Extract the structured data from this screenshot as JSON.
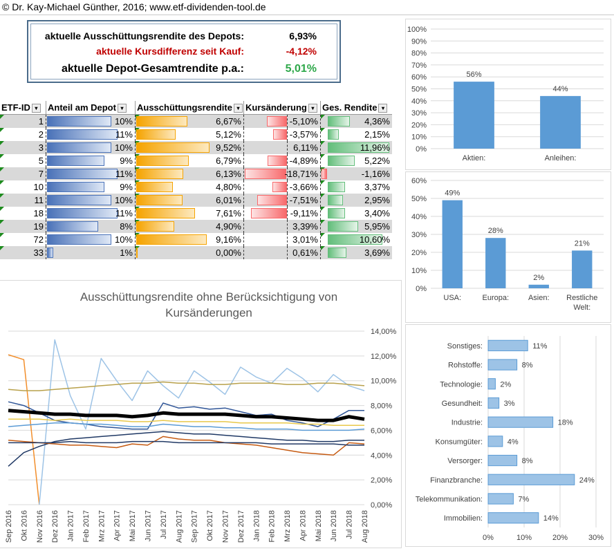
{
  "header": {
    "copyright": "© Dr. Kay-Michael Günther, 2016; www.etf-dividenden-tool.de"
  },
  "summary": {
    "rows": [
      {
        "label": "aktuelle Ausschüttungsrendite des Depots:",
        "value": "6,93%",
        "color": "#000000"
      },
      {
        "label": "aktuelle Kursdifferenz seit Kauf:",
        "value": "-4,12%",
        "color": "#c00000"
      },
      {
        "label": "aktuelle Depot-Gesamtrendite p.a.:",
        "value": "5,01%",
        "color": "#2ea84a"
      }
    ]
  },
  "table": {
    "headers": [
      "ETF-ID",
      "Anteil am Depot",
      "Ausschüttungsrendite",
      "Kursänderung",
      "Ges. Rendite"
    ],
    "rows": [
      {
        "id": "1",
        "anteil": "10%",
        "aus": "6,67%",
        "kurs": "-5,10%",
        "ges": "4,36%",
        "a": 10,
        "r": 6.67,
        "k": -5.1,
        "g": 4.36
      },
      {
        "id": "2",
        "anteil": "11%",
        "aus": "5,12%",
        "kurs": "-3,57%",
        "ges": "2,15%",
        "a": 11,
        "r": 5.12,
        "k": -3.57,
        "g": 2.15
      },
      {
        "id": "3",
        "anteil": "10%",
        "aus": "9,52%",
        "kurs": "6,11%",
        "ges": "11,96%",
        "a": 10,
        "r": 9.52,
        "k": 6.11,
        "g": 11.96
      },
      {
        "id": "5",
        "anteil": "9%",
        "aus": "6,79%",
        "kurs": "-4,89%",
        "ges": "5,22%",
        "a": 9,
        "r": 6.79,
        "k": -4.89,
        "g": 5.22
      },
      {
        "id": "7",
        "anteil": "11%",
        "aus": "6,13%",
        "kurs": "-18,71%",
        "ges": "-1,16%",
        "a": 11,
        "r": 6.13,
        "k": -18.71,
        "g": -1.16
      },
      {
        "id": "10",
        "anteil": "9%",
        "aus": "4,80%",
        "kurs": "-3,66%",
        "ges": "3,37%",
        "a": 9,
        "r": 4.8,
        "k": -3.66,
        "g": 3.37
      },
      {
        "id": "11",
        "anteil": "10%",
        "aus": "6,01%",
        "kurs": "-7,51%",
        "ges": "2,95%",
        "a": 10,
        "r": 6.01,
        "k": -7.51,
        "g": 2.95
      },
      {
        "id": "18",
        "anteil": "11%",
        "aus": "7,61%",
        "kurs": "-9,11%",
        "ges": "3,40%",
        "a": 11,
        "r": 7.61,
        "k": -9.11,
        "g": 3.4
      },
      {
        "id": "19",
        "anteil": "8%",
        "aus": "4,90%",
        "kurs": "3,39%",
        "ges": "5,95%",
        "a": 8,
        "r": 4.9,
        "k": 3.39,
        "g": 5.95
      },
      {
        "id": "72",
        "anteil": "10%",
        "aus": "9,16%",
        "kurs": "3,01%",
        "ges": "10,60%",
        "a": 10,
        "r": 9.16,
        "k": 3.01,
        "g": 10.6
      },
      {
        "id": "33",
        "anteil": "1%",
        "aus": "0,00%",
        "kurs": "0,61%",
        "ges": "3,69%",
        "a": 1,
        "r": 0.0,
        "k": 0.61,
        "g": 3.69
      }
    ]
  },
  "chart_data": [
    {
      "type": "bar",
      "categories": [
        "Aktien:",
        "Anleihen:"
      ],
      "values": [
        56,
        44
      ],
      "value_labels": [
        "56%",
        "44%"
      ],
      "ylim": [
        0,
        100
      ],
      "yticks": [
        "0%",
        "10%",
        "20%",
        "30%",
        "40%",
        "50%",
        "60%",
        "70%",
        "80%",
        "90%",
        "100%"
      ],
      "color": "#5b9bd5"
    },
    {
      "type": "bar",
      "categories": [
        "USA:",
        "Europa:",
        "Asien:",
        "Restliche Welt:"
      ],
      "values": [
        49,
        28,
        2,
        21
      ],
      "value_labels": [
        "49%",
        "28%",
        "2%",
        "21%"
      ],
      "ylim": [
        0,
        60
      ],
      "yticks": [
        "0%",
        "10%",
        "20%",
        "30%",
        "40%",
        "50%",
        "60%"
      ],
      "color": "#5b9bd5"
    },
    {
      "type": "bar",
      "orientation": "horizontal",
      "categories": [
        "Sonstiges:",
        "Rohstoffe:",
        "Technologie:",
        "Gesundheit:",
        "Industrie:",
        "Konsumgüter:",
        "Versorger:",
        "Finanzbranche:",
        "Telekommunikation:",
        "Immobilien:"
      ],
      "values": [
        11,
        8,
        2,
        3,
        18,
        4,
        8,
        24,
        7,
        14
      ],
      "value_labels": [
        "11%",
        "8%",
        "2%",
        "3%",
        "18%",
        "4%",
        "8%",
        "24%",
        "7%",
        "14%"
      ],
      "xlim": [
        0,
        30
      ],
      "xticks": [
        "0%",
        "10%",
        "20%",
        "30%"
      ],
      "color": "#9dc3e6"
    },
    {
      "type": "line",
      "title": "Ausschüttungsrendite ohne Berücksichtigung von Kursänderungen",
      "x": [
        "Sep 2016",
        "Okt 2016",
        "Nov 2016",
        "Dez 2016",
        "Jan 2017",
        "Feb 2017",
        "Mrz 2017",
        "Apr 2017",
        "Mai 2017",
        "Jun 2017",
        "Jul 2017",
        "Aug 2017",
        "Sep 2017",
        "Okt 2017",
        "Nov 2017",
        "Dez 2017",
        "Jan 2018",
        "Feb 2018",
        "Mrz 2018",
        "Apr 2018",
        "Mai 2018",
        "Jun 2018",
        "Jul 2018",
        "Aug 2018"
      ],
      "ylim": [
        0,
        14
      ],
      "yticks": [
        "0,00%",
        "2,00%",
        "4,00%",
        "6,00%",
        "8,00%",
        "10,00%",
        "12,00%",
        "14,00%"
      ],
      "series": [
        {
          "color": "#000000",
          "width": 5,
          "values": [
            7.6,
            7.5,
            7.4,
            7.3,
            7.3,
            7.2,
            7.2,
            7.2,
            7.1,
            7.2,
            7.4,
            7.3,
            7.3,
            7.3,
            7.3,
            7.2,
            7.1,
            7.1,
            7.0,
            6.9,
            6.8,
            6.8,
            7.1,
            6.9
          ]
        },
        {
          "color": "#f28e2b",
          "width": 1.5,
          "values": [
            12.1,
            11.7,
            0.0,
            null,
            null,
            null,
            null,
            null,
            null,
            null,
            null,
            null,
            null,
            null,
            null,
            null,
            null,
            null,
            null,
            null,
            null,
            null,
            null,
            null
          ]
        },
        {
          "color": "#9dc3e6",
          "width": 1.5,
          "values": [
            null,
            null,
            0.0,
            13.3,
            8.8,
            6.1,
            11.8,
            10.0,
            8.4,
            10.8,
            9.6,
            8.6,
            10.8,
            9.9,
            8.9,
            11.1,
            10.3,
            9.8,
            11.0,
            10.2,
            9.1,
            10.5,
            9.6,
            9.2
          ]
        },
        {
          "color": "#b8a04a",
          "width": 1.5,
          "values": [
            9.3,
            9.2,
            9.2,
            9.3,
            9.4,
            9.5,
            9.6,
            9.7,
            9.8,
            9.8,
            9.9,
            9.8,
            9.8,
            9.7,
            9.7,
            9.8,
            9.8,
            9.8,
            9.7,
            9.7,
            9.8,
            9.8,
            9.7,
            9.6
          ]
        },
        {
          "color": "#2f5597",
          "width": 1.5,
          "values": [
            8.3,
            8.0,
            7.4,
            6.8,
            6.6,
            6.5,
            6.3,
            6.2,
            6.1,
            6.1,
            8.2,
            7.8,
            7.9,
            7.7,
            7.8,
            7.5,
            7.2,
            7.3,
            6.8,
            6.6,
            6.3,
            6.9,
            7.6,
            7.6
          ]
        },
        {
          "color": "#e8c84a",
          "width": 1.5,
          "values": [
            6.9,
            6.9,
            6.9,
            6.8,
            6.9,
            6.8,
            6.8,
            6.8,
            6.7,
            6.7,
            6.8,
            6.7,
            6.7,
            6.7,
            6.7,
            6.6,
            6.6,
            6.6,
            6.6,
            6.5,
            6.5,
            6.4,
            6.4,
            6.4
          ]
        },
        {
          "color": "#5b9bd5",
          "width": 1.5,
          "values": [
            6.3,
            6.4,
            6.5,
            6.6,
            6.6,
            6.5,
            6.5,
            6.4,
            6.3,
            6.3,
            6.5,
            6.4,
            6.3,
            6.3,
            6.2,
            6.2,
            6.1,
            6.1,
            6.1,
            6.0,
            6.0,
            6.0,
            6.0,
            6.1
          ]
        },
        {
          "color": "#1f3864",
          "width": 1.5,
          "values": [
            3.1,
            4.2,
            4.7,
            5.1,
            5.3,
            5.4,
            5.5,
            5.6,
            5.7,
            5.8,
            5.9,
            5.8,
            5.7,
            5.7,
            5.6,
            5.5,
            5.4,
            5.3,
            5.2,
            5.2,
            5.1,
            5.1,
            5.2,
            5.2
          ]
        },
        {
          "color": "#c55a11",
          "width": 1.5,
          "values": [
            5.2,
            5.1,
            5.0,
            4.9,
            4.8,
            4.8,
            4.7,
            4.6,
            4.9,
            4.8,
            5.5,
            5.3,
            5.2,
            5.2,
            5.0,
            4.9,
            4.8,
            4.6,
            4.4,
            4.2,
            4.1,
            4.0,
            5.0,
            4.9
          ]
        },
        {
          "color": "#203864",
          "width": 1.5,
          "values": [
            5.0,
            5.0,
            5.0,
            5.0,
            5.1,
            5.0,
            5.0,
            5.0,
            5.1,
            5.1,
            5.1,
            5.0,
            5.0,
            5.0,
            5.0,
            5.0,
            5.0,
            4.9,
            4.9,
            4.9,
            4.9,
            4.9,
            4.8,
            4.8
          ]
        }
      ]
    }
  ]
}
